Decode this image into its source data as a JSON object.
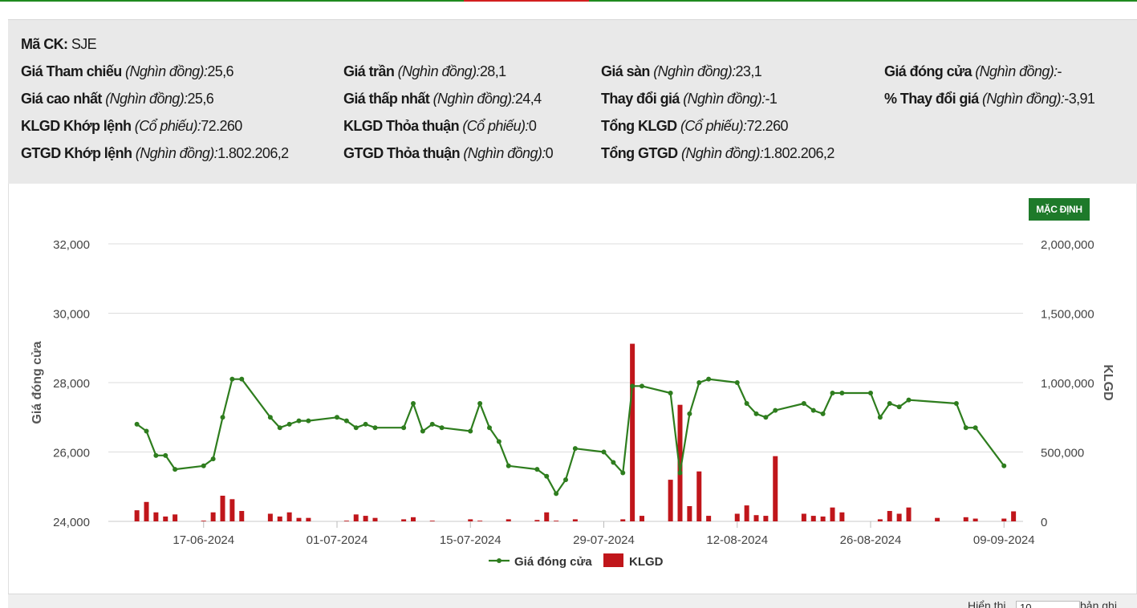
{
  "stock": {
    "code_label": "Mã CK:",
    "code_value": "SJE",
    "rows": [
      [
        {
          "label": "Giá Tham chiếu",
          "unit": "(Nghìn đồng):",
          "value": "25,6"
        },
        {
          "label": "Giá trần",
          "unit": "(Nghìn đồng):",
          "value": "28,1"
        },
        {
          "label": "Giá sàn",
          "unit": "(Nghìn đồng):",
          "value": "23,1"
        },
        {
          "label": "Giá đóng cửa",
          "unit": "(Nghìn đồng):",
          "value": "-"
        }
      ],
      [
        {
          "label": "Giá cao nhất",
          "unit": "(Nghìn đồng):",
          "value": "25,6"
        },
        {
          "label": "Giá thấp nhất",
          "unit": "(Nghìn đồng):",
          "value": "24,4"
        },
        {
          "label": "Thay đổi giá",
          "unit": "(Nghìn đồng):",
          "value": "-1"
        },
        {
          "label": "% Thay đổi giá",
          "unit": "(Nghìn đồng):",
          "value": "-3,91"
        }
      ],
      [
        {
          "label": "KLGD Khớp lệnh",
          "unit": "(Cổ phiếu):",
          "value": "72.260"
        },
        {
          "label": "KLGD Thỏa thuận",
          "unit": "(Cổ phiếu):",
          "value": "0"
        },
        {
          "label": "Tổng KLGD",
          "unit": "(Cổ phiếu):",
          "value": "72.260"
        }
      ],
      [
        {
          "label": "GTGD Khớp lệnh",
          "unit": "(Nghìn đồng):",
          "value": "1.802.206,2"
        },
        {
          "label": "GTGD Thỏa thuận",
          "unit": "(Nghìn đồng):",
          "value": "0"
        },
        {
          "label": "Tổng GTGD",
          "unit": "(Nghìn đồng):",
          "value": "1.802.206,2"
        }
      ]
    ]
  },
  "default_button_label": "MẶC ĐỊNH",
  "bottom_bar": {
    "show_label": "Hiển thị",
    "show_value": "10",
    "records_label": "bản ghi"
  },
  "colors": {
    "price_line": "#2e7d1e",
    "volume_bar": "#c0161b",
    "button": "#1e7a2a"
  },
  "chart_data": {
    "type": "line+bar",
    "x_label": "",
    "y_left_label": "Giá đóng cửa",
    "y_right_label": "KLGD",
    "y_left_range": [
      24000,
      32000
    ],
    "y_left_ticks": [
      "32,000",
      "30,000",
      "28,000",
      "26,000",
      "24,000"
    ],
    "y_left_tick_values": [
      32000,
      30000,
      28000,
      26000,
      24000
    ],
    "y_right_range": [
      0,
      2000000
    ],
    "y_right_ticks": [
      "2,000,000",
      "1,500,000",
      "1,000,000",
      "500,000",
      "0"
    ],
    "y_right_tick_values": [
      2000000,
      1500000,
      1000000,
      500000,
      0
    ],
    "x_range": [
      "2024-06-07",
      "2024-09-11"
    ],
    "x_ticks": [
      "17-06-2024",
      "01-07-2024",
      "15-07-2024",
      "29-07-2024",
      "12-08-2024",
      "26-08-2024",
      "09-09-2024"
    ],
    "x_tick_dates": [
      "2024-06-17",
      "2024-07-01",
      "2024-07-15",
      "2024-07-29",
      "2024-08-12",
      "2024-08-26",
      "2024-09-09"
    ],
    "grid": true,
    "legend_position": "bottom",
    "legend": [
      {
        "name": "Giá đóng cửa",
        "kind": "line"
      },
      {
        "name": "KLGD",
        "kind": "bar"
      }
    ],
    "series": [
      {
        "name": "Giá đóng cửa",
        "kind": "line",
        "points": [
          [
            "2024-06-10",
            26800
          ],
          [
            "2024-06-11",
            26600
          ],
          [
            "2024-06-12",
            25900
          ],
          [
            "2024-06-13",
            25900
          ],
          [
            "2024-06-14",
            25500
          ],
          [
            "2024-06-17",
            25600
          ],
          [
            "2024-06-18",
            25800
          ],
          [
            "2024-06-19",
            27000
          ],
          [
            "2024-06-20",
            28100
          ],
          [
            "2024-06-21",
            28100
          ],
          [
            "2024-06-24",
            27000
          ],
          [
            "2024-06-25",
            26700
          ],
          [
            "2024-06-26",
            26800
          ],
          [
            "2024-06-27",
            26900
          ],
          [
            "2024-06-28",
            26900
          ],
          [
            "2024-07-01",
            27000
          ],
          [
            "2024-07-02",
            26900
          ],
          [
            "2024-07-03",
            26700
          ],
          [
            "2024-07-04",
            26800
          ],
          [
            "2024-07-05",
            26700
          ],
          [
            "2024-07-08",
            26700
          ],
          [
            "2024-07-09",
            27400
          ],
          [
            "2024-07-10",
            26600
          ],
          [
            "2024-07-11",
            26800
          ],
          [
            "2024-07-12",
            26700
          ],
          [
            "2024-07-15",
            26600
          ],
          [
            "2024-07-16",
            27400
          ],
          [
            "2024-07-17",
            26700
          ],
          [
            "2024-07-18",
            26300
          ],
          [
            "2024-07-19",
            25600
          ],
          [
            "2024-07-22",
            25500
          ],
          [
            "2024-07-23",
            25300
          ],
          [
            "2024-07-24",
            24800
          ],
          [
            "2024-07-25",
            25200
          ],
          [
            "2024-07-26",
            26100
          ],
          [
            "2024-07-29",
            26000
          ],
          [
            "2024-07-30",
            25700
          ],
          [
            "2024-07-31",
            25400
          ],
          [
            "2024-08-01",
            27900
          ],
          [
            "2024-08-02",
            27900
          ],
          [
            "2024-08-05",
            27700
          ],
          [
            "2024-08-06",
            25400
          ],
          [
            "2024-08-07",
            27100
          ],
          [
            "2024-08-08",
            28000
          ],
          [
            "2024-08-09",
            28100
          ],
          [
            "2024-08-12",
            28000
          ],
          [
            "2024-08-13",
            27400
          ],
          [
            "2024-08-14",
            27100
          ],
          [
            "2024-08-15",
            27000
          ],
          [
            "2024-08-16",
            27200
          ],
          [
            "2024-08-19",
            27400
          ],
          [
            "2024-08-20",
            27200
          ],
          [
            "2024-08-21",
            27100
          ],
          [
            "2024-08-22",
            27700
          ],
          [
            "2024-08-23",
            27700
          ],
          [
            "2024-08-26",
            27700
          ],
          [
            "2024-08-27",
            27000
          ],
          [
            "2024-08-28",
            27400
          ],
          [
            "2024-08-29",
            27300
          ],
          [
            "2024-08-30",
            27500
          ],
          [
            "2024-09-04",
            27400
          ],
          [
            "2024-09-05",
            26700
          ],
          [
            "2024-09-06",
            26700
          ],
          [
            "2024-09-09",
            25600
          ]
        ]
      },
      {
        "name": "KLGD",
        "kind": "bar",
        "points": [
          [
            "2024-06-10",
            80000
          ],
          [
            "2024-06-11",
            140000
          ],
          [
            "2024-06-12",
            65000
          ],
          [
            "2024-06-13",
            35000
          ],
          [
            "2024-06-14",
            50000
          ],
          [
            "2024-06-17",
            5000
          ],
          [
            "2024-06-18",
            65000
          ],
          [
            "2024-06-19",
            185000
          ],
          [
            "2024-06-20",
            160000
          ],
          [
            "2024-06-21",
            75000
          ],
          [
            "2024-06-24",
            55000
          ],
          [
            "2024-06-25",
            35000
          ],
          [
            "2024-06-26",
            65000
          ],
          [
            "2024-06-27",
            25000
          ],
          [
            "2024-06-28",
            25000
          ],
          [
            "2024-07-02",
            5000
          ],
          [
            "2024-07-03",
            50000
          ],
          [
            "2024-07-04",
            40000
          ],
          [
            "2024-07-05",
            25000
          ],
          [
            "2024-07-08",
            15000
          ],
          [
            "2024-07-09",
            30000
          ],
          [
            "2024-07-11",
            5000
          ],
          [
            "2024-07-15",
            15000
          ],
          [
            "2024-07-16",
            5000
          ],
          [
            "2024-07-19",
            15000
          ],
          [
            "2024-07-22",
            10000
          ],
          [
            "2024-07-23",
            65000
          ],
          [
            "2024-07-24",
            5000
          ],
          [
            "2024-07-26",
            15000
          ],
          [
            "2024-07-31",
            15000
          ],
          [
            "2024-08-01",
            1280000
          ],
          [
            "2024-08-02",
            40000
          ],
          [
            "2024-08-05",
            300000
          ],
          [
            "2024-08-06",
            840000
          ],
          [
            "2024-08-07",
            110000
          ],
          [
            "2024-08-08",
            360000
          ],
          [
            "2024-08-09",
            40000
          ],
          [
            "2024-08-12",
            55000
          ],
          [
            "2024-08-13",
            115000
          ],
          [
            "2024-08-14",
            45000
          ],
          [
            "2024-08-15",
            40000
          ],
          [
            "2024-08-16",
            470000
          ],
          [
            "2024-08-19",
            55000
          ],
          [
            "2024-08-20",
            40000
          ],
          [
            "2024-08-21",
            35000
          ],
          [
            "2024-08-22",
            100000
          ],
          [
            "2024-08-23",
            65000
          ],
          [
            "2024-08-27",
            15000
          ],
          [
            "2024-08-28",
            75000
          ],
          [
            "2024-08-29",
            55000
          ],
          [
            "2024-08-30",
            100000
          ],
          [
            "2024-09-02",
            25000
          ],
          [
            "2024-09-05",
            30000
          ],
          [
            "2024-09-06",
            20000
          ],
          [
            "2024-09-09",
            20000
          ],
          [
            "2024-09-10",
            72260
          ]
        ]
      }
    ]
  }
}
